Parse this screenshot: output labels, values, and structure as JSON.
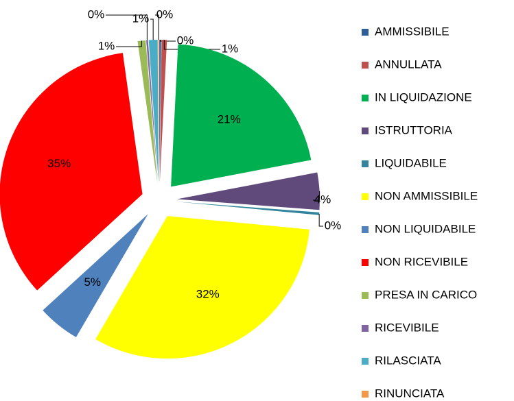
{
  "chart_data": {
    "type": "pie",
    "categories": [
      "AMMISSIBILE",
      "ANNULLATA",
      "IN LIQUIDAZIONE",
      "ISTRUTTORIA",
      "LIQUIDABILE",
      "NON AMMISSIBILE",
      "NON LIQUIDABILE",
      "NON RICEVIBILE",
      "PRESA IN CARICO",
      "RICEVIBILE",
      "RILASCIATA",
      "RINUNCIATA"
    ],
    "values": [
      0.2,
      0.6,
      21.2,
      4.2,
      0.3,
      31.9,
      4.8,
      34.6,
      0.9,
      0.2,
      1.0,
      0.1
    ],
    "value_labels": [
      "0%",
      "1%",
      "21%",
      "4%",
      "0%",
      "32%",
      "5%",
      "35%",
      "1%",
      "0%",
      "1%",
      "0%"
    ],
    "colors": [
      "#2f5f98",
      "#c0504d",
      "#00b050",
      "#604a7b",
      "#31849b",
      "#ffff00",
      "#4f81bd",
      "#ff0000",
      "#9bbb59",
      "#8064a2",
      "#4bacc6",
      "#f79646"
    ],
    "legend": "right"
  }
}
